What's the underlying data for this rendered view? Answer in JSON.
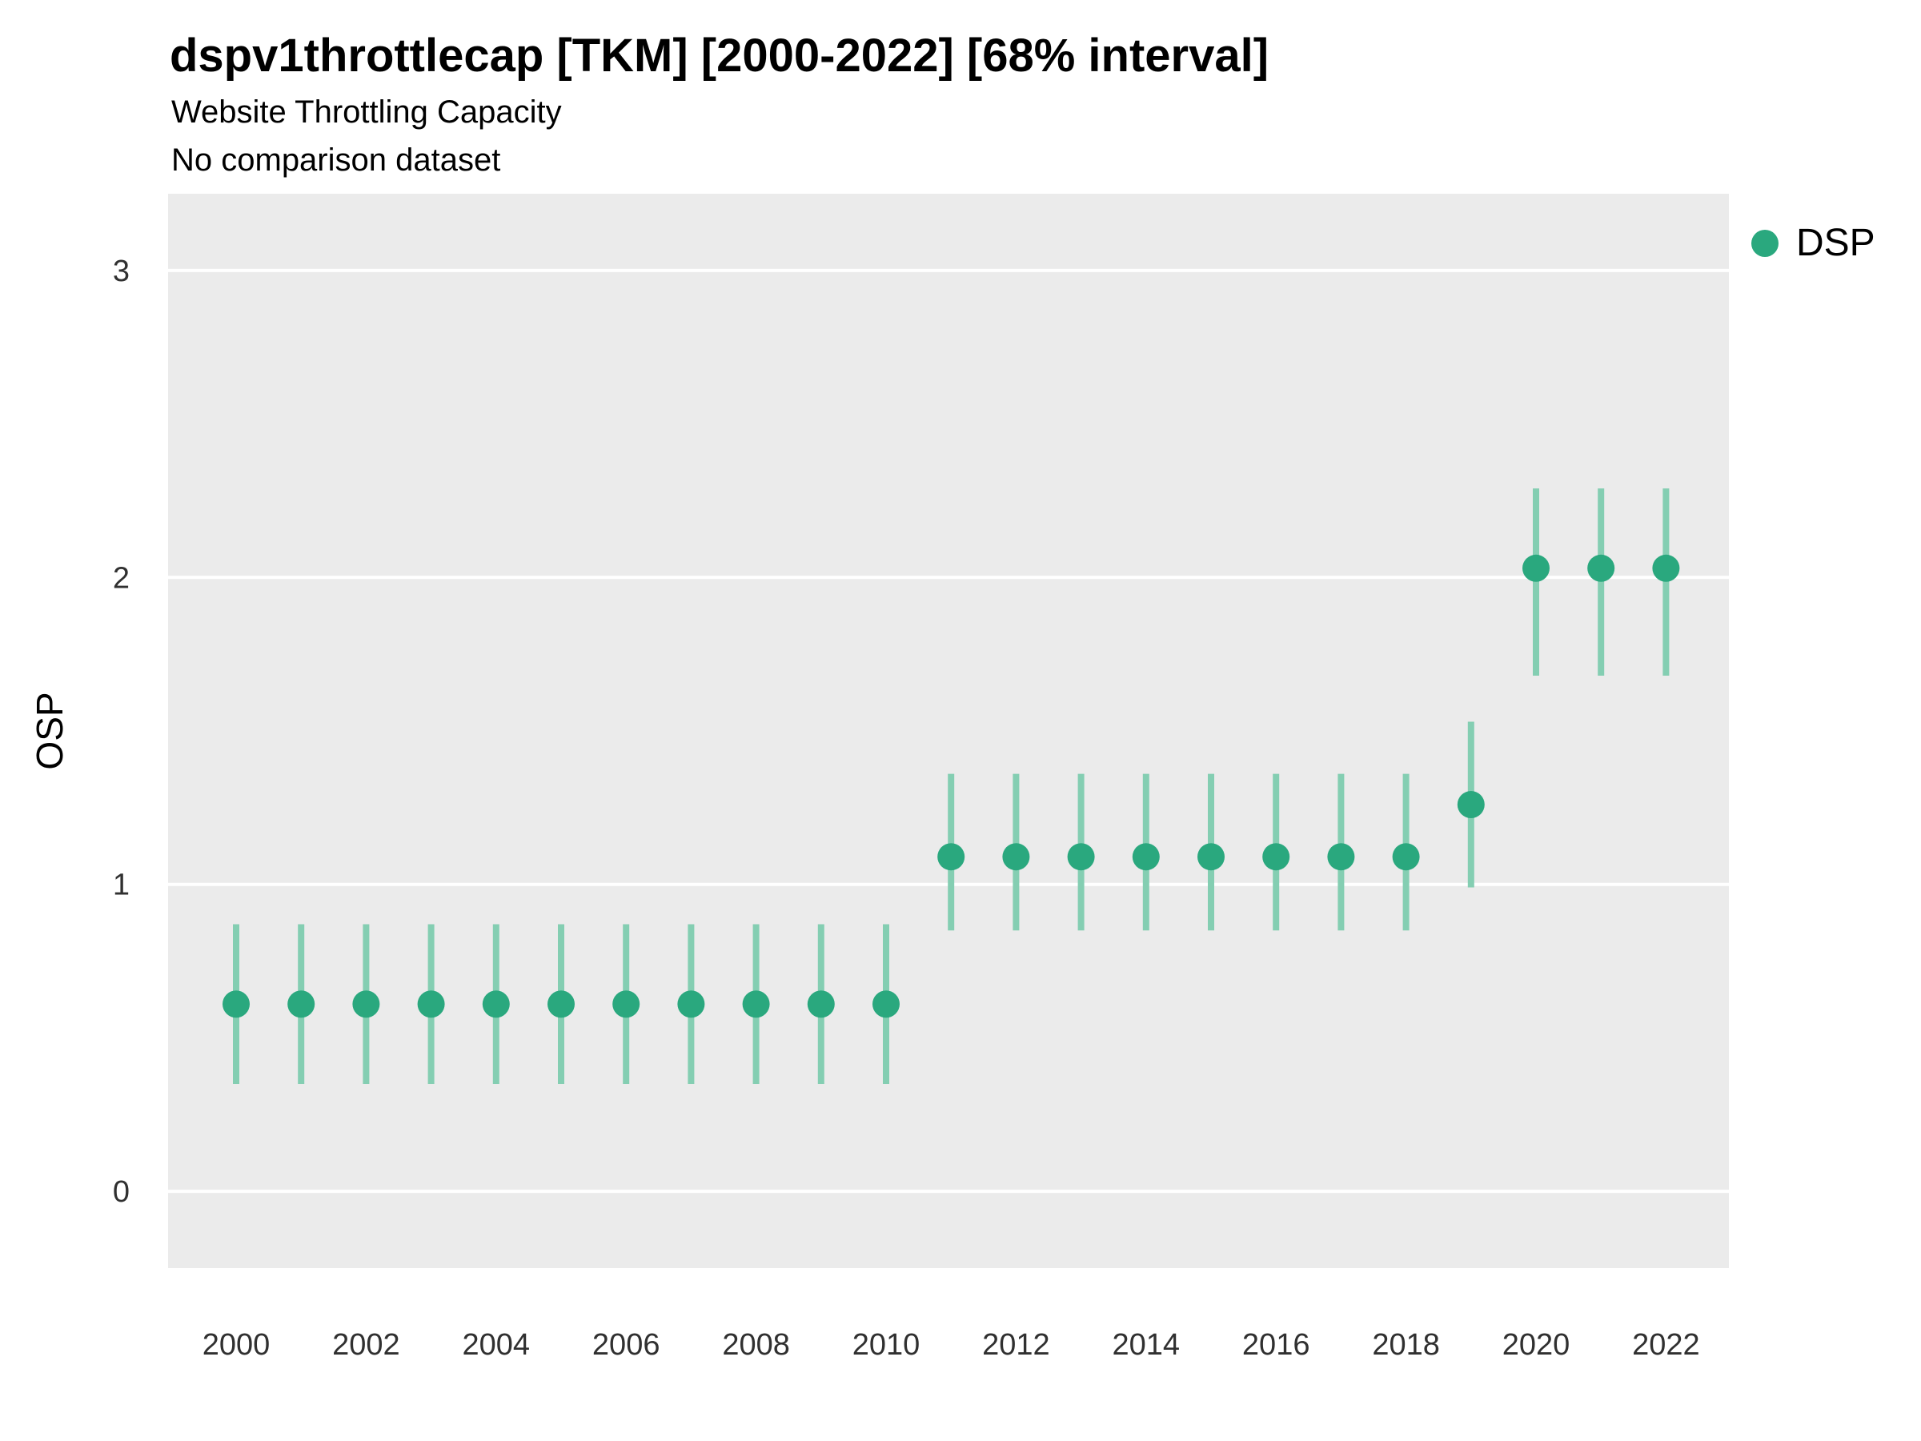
{
  "chart_data": {
    "type": "pointrange",
    "title": "dspv1throttlecap [TKM] [2000-2022] [68% interval]",
    "subtitle1": "Website Throttling Capacity",
    "subtitle2": "No comparison dataset",
    "interval_label": "68% interval",
    "series_name": "DSP",
    "xlabel": "",
    "ylabel": "OSP",
    "ylim": [
      -0.25,
      3.25
    ],
    "yticks": [
      0,
      1,
      2,
      3
    ],
    "xticks": [
      2000,
      2002,
      2004,
      2006,
      2008,
      2010,
      2012,
      2014,
      2016,
      2018,
      2020,
      2022
    ],
    "grid": "major-horizontal",
    "legend_position": "right",
    "colors": {
      "point": "#2aa87e",
      "interval": "#84ceb2",
      "plot_bg": "#ebebeb",
      "grid": "#ffffff",
      "tick_text": "#303030"
    },
    "points": [
      {
        "year": 2000,
        "mid": 0.61,
        "lo": 0.35,
        "hi": 0.87
      },
      {
        "year": 2001,
        "mid": 0.61,
        "lo": 0.35,
        "hi": 0.87
      },
      {
        "year": 2002,
        "mid": 0.61,
        "lo": 0.35,
        "hi": 0.87
      },
      {
        "year": 2003,
        "mid": 0.61,
        "lo": 0.35,
        "hi": 0.87
      },
      {
        "year": 2004,
        "mid": 0.61,
        "lo": 0.35,
        "hi": 0.87
      },
      {
        "year": 2005,
        "mid": 0.61,
        "lo": 0.35,
        "hi": 0.87
      },
      {
        "year": 2006,
        "mid": 0.61,
        "lo": 0.35,
        "hi": 0.87
      },
      {
        "year": 2007,
        "mid": 0.61,
        "lo": 0.35,
        "hi": 0.87
      },
      {
        "year": 2008,
        "mid": 0.61,
        "lo": 0.35,
        "hi": 0.87
      },
      {
        "year": 2009,
        "mid": 0.61,
        "lo": 0.35,
        "hi": 0.87
      },
      {
        "year": 2010,
        "mid": 0.61,
        "lo": 0.35,
        "hi": 0.87
      },
      {
        "year": 2011,
        "mid": 1.09,
        "lo": 0.85,
        "hi": 1.36
      },
      {
        "year": 2012,
        "mid": 1.09,
        "lo": 0.85,
        "hi": 1.36
      },
      {
        "year": 2013,
        "mid": 1.09,
        "lo": 0.85,
        "hi": 1.36
      },
      {
        "year": 2014,
        "mid": 1.09,
        "lo": 0.85,
        "hi": 1.36
      },
      {
        "year": 2015,
        "mid": 1.09,
        "lo": 0.85,
        "hi": 1.36
      },
      {
        "year": 2016,
        "mid": 1.09,
        "lo": 0.85,
        "hi": 1.36
      },
      {
        "year": 2017,
        "mid": 1.09,
        "lo": 0.85,
        "hi": 1.36
      },
      {
        "year": 2018,
        "mid": 1.09,
        "lo": 0.85,
        "hi": 1.36
      },
      {
        "year": 2019,
        "mid": 1.26,
        "lo": 0.99,
        "hi": 1.53
      },
      {
        "year": 2020,
        "mid": 2.03,
        "lo": 1.68,
        "hi": 2.29
      },
      {
        "year": 2021,
        "mid": 2.03,
        "lo": 1.68,
        "hi": 2.29
      },
      {
        "year": 2022,
        "mid": 2.03,
        "lo": 1.68,
        "hi": 2.29
      }
    ]
  }
}
